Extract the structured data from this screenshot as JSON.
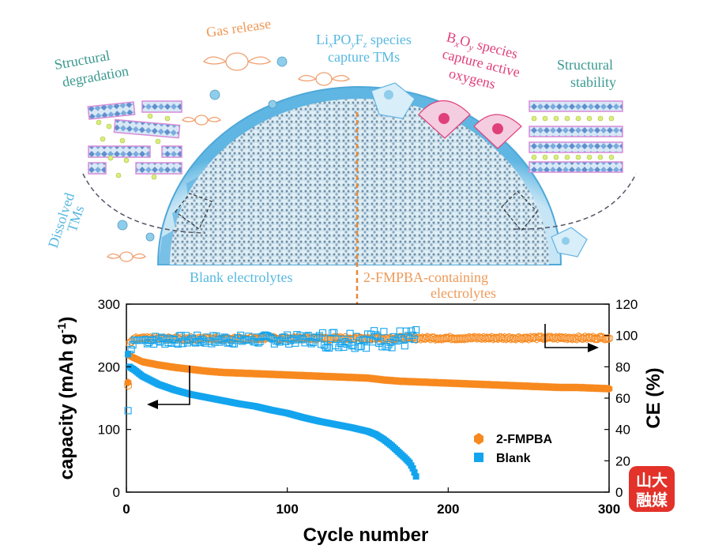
{
  "illustration": {
    "labels": {
      "gas_release": "Gas release",
      "capture_tms_line1": "Li",
      "capture_tms_line1_sub1": "x",
      "capture_tms_line1_mid1": "PO",
      "capture_tms_line1_sub2": "y",
      "capture_tms_line1_mid2": "F",
      "capture_tms_line1_sub3": "z",
      "capture_tms_line1_tail": " species",
      "capture_tms_line2": "capture TMs",
      "bo_line1_a": "B",
      "bo_line1_sub1": "x",
      "bo_line1_b": "O",
      "bo_line1_sub2": "y",
      "bo_line1_tail": " species",
      "bo_line2": "capture active",
      "bo_line3": "oxygens",
      "structural_degradation_1": "Structural",
      "structural_degradation_2": "degradation",
      "structural_stability_1": "Structural",
      "structural_stability_2": "stability",
      "dissolved_1": "Dissolved",
      "dissolved_2": "TMs",
      "blank_electrolytes": "Blank electrolytes",
      "fmpba_electrolytes_1": "2-FMPBA-containing",
      "fmpba_electrolytes_2": "electrolytes"
    },
    "colors": {
      "teal": "#3a9a90",
      "orange": "#ee9a5a",
      "blue": "#58b8e0",
      "pink": "#e0407a",
      "particle": "#8fcdea"
    }
  },
  "watermark": {
    "line1": "山大",
    "line2": "融媒",
    "color": "#e2322a"
  },
  "chart_data": {
    "type": "scatter",
    "xlabel": "Cycle number",
    "ylabel": "capacity (mAh g-1)",
    "ylabel_parts": {
      "main": "capacity (mAh g",
      "sup": "-1",
      "tail": ")"
    },
    "y2label": "CE (%)",
    "xlim": [
      0,
      300
    ],
    "ylim": [
      0,
      300
    ],
    "y2lim": [
      0,
      120
    ],
    "xticks": [
      0,
      100,
      200,
      300
    ],
    "yticks": [
      0,
      100,
      200,
      300
    ],
    "y2ticks": [
      0,
      20,
      40,
      60,
      80,
      100,
      120
    ],
    "legend_position": "bottom-right",
    "series": [
      {
        "name": "2-FMPBA",
        "color": "#f7891f",
        "marker": "hexagon",
        "axis": "left",
        "capacity": [
          [
            1,
            175
          ],
          [
            2,
            218
          ],
          [
            4,
            215
          ],
          [
            10,
            208
          ],
          [
            20,
            203
          ],
          [
            30,
            199
          ],
          [
            40,
            196
          ],
          [
            50,
            193
          ],
          [
            60,
            191
          ],
          [
            70,
            190
          ],
          [
            80,
            189
          ],
          [
            90,
            188
          ],
          [
            100,
            187
          ],
          [
            110,
            186
          ],
          [
            120,
            185
          ],
          [
            130,
            184
          ],
          [
            140,
            183
          ],
          [
            150,
            182
          ],
          [
            160,
            179
          ],
          [
            170,
            177
          ],
          [
            180,
            176
          ],
          [
            190,
            175
          ],
          [
            200,
            174
          ],
          [
            210,
            173
          ],
          [
            220,
            172
          ],
          [
            230,
            171
          ],
          [
            240,
            170
          ],
          [
            250,
            169
          ],
          [
            260,
            168
          ],
          [
            270,
            167
          ],
          [
            280,
            167
          ],
          [
            290,
            166
          ],
          [
            300,
            165
          ]
        ],
        "ce": [
          [
            1,
            68
          ],
          [
            2,
            95
          ],
          [
            5,
            98
          ],
          [
            300,
            98.5
          ]
        ]
      },
      {
        "name": "Blank",
        "color": "#13a4ee",
        "marker": "square",
        "axis": "left",
        "capacity": [
          [
            1,
            220
          ],
          [
            2,
            200
          ],
          [
            5,
            195
          ],
          [
            10,
            185
          ],
          [
            20,
            172
          ],
          [
            30,
            163
          ],
          [
            40,
            156
          ],
          [
            50,
            151
          ],
          [
            60,
            146
          ],
          [
            70,
            141
          ],
          [
            80,
            137
          ],
          [
            90,
            131
          ],
          [
            100,
            126
          ],
          [
            110,
            119
          ],
          [
            120,
            113
          ],
          [
            130,
            108
          ],
          [
            140,
            103
          ],
          [
            150,
            97
          ],
          [
            155,
            92
          ],
          [
            160,
            84
          ],
          [
            165,
            74
          ],
          [
            170,
            62
          ],
          [
            173,
            55
          ],
          [
            176,
            47
          ],
          [
            178,
            38
          ],
          [
            180,
            25
          ]
        ],
        "ce": [
          [
            1,
            52
          ],
          [
            2,
            88
          ],
          [
            5,
            97
          ],
          [
            180,
            98
          ]
        ]
      }
    ]
  }
}
